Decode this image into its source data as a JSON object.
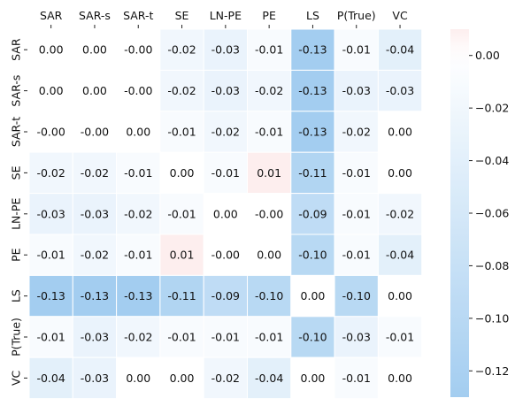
{
  "chart_data": {
    "type": "heatmap",
    "title": "",
    "xlabel": "",
    "ylabel": "",
    "x_categories": [
      "SAR",
      "SAR-s",
      "SAR-t",
      "SE",
      "LN-PE",
      "PE",
      "LS",
      "P(True)",
      "VC"
    ],
    "y_categories": [
      "SAR",
      "SAR-s",
      "SAR-t",
      "SE",
      "LN-PE",
      "PE",
      "LS",
      "P(True)",
      "VC"
    ],
    "values": [
      [
        0.0,
        0.0,
        -0.0,
        -0.02,
        -0.03,
        -0.01,
        -0.13,
        -0.01,
        -0.04
      ],
      [
        0.0,
        0.0,
        -0.0,
        -0.02,
        -0.03,
        -0.02,
        -0.13,
        -0.03,
        -0.03
      ],
      [
        -0.0,
        -0.0,
        0.0,
        -0.01,
        -0.02,
        -0.01,
        -0.13,
        -0.02,
        0.0
      ],
      [
        -0.02,
        -0.02,
        -0.01,
        0.0,
        -0.01,
        0.01,
        -0.11,
        -0.01,
        0.0
      ],
      [
        -0.03,
        -0.03,
        -0.02,
        -0.01,
        0.0,
        -0.0,
        -0.09,
        -0.01,
        -0.02
      ],
      [
        -0.01,
        -0.02,
        -0.01,
        0.01,
        -0.0,
        0.0,
        -0.1,
        -0.01,
        -0.04
      ],
      [
        -0.13,
        -0.13,
        -0.13,
        -0.11,
        -0.09,
        -0.1,
        0.0,
        -0.1,
        0.0
      ],
      [
        -0.01,
        -0.03,
        -0.02,
        -0.01,
        -0.01,
        -0.01,
        -0.1,
        -0.03,
        -0.01
      ],
      [
        -0.04,
        -0.03,
        0.0,
        0.0,
        -0.02,
        -0.04,
        0.0,
        -0.01,
        0.0
      ]
    ],
    "cell_labels": [
      [
        "0.00",
        "0.00",
        "-0.00",
        "-0.02",
        "-0.03",
        "-0.01",
        "-0.13",
        "-0.01",
        "-0.04"
      ],
      [
        "0.00",
        "0.00",
        "-0.00",
        "-0.02",
        "-0.03",
        "-0.02",
        "-0.13",
        "-0.03",
        "-0.03"
      ],
      [
        "-0.00",
        "-0.00",
        "0.00",
        "-0.01",
        "-0.02",
        "-0.01",
        "-0.13",
        "-0.02",
        "0.00"
      ],
      [
        "-0.02",
        "-0.02",
        "-0.01",
        "0.00",
        "-0.01",
        "0.01",
        "-0.11",
        "-0.01",
        "0.00"
      ],
      [
        "-0.03",
        "-0.03",
        "-0.02",
        "-0.01",
        "0.00",
        "-0.00",
        "-0.09",
        "-0.01",
        "-0.02"
      ],
      [
        "-0.01",
        "-0.02",
        "-0.01",
        "0.01",
        "-0.00",
        "0.00",
        "-0.10",
        "-0.01",
        "-0.04"
      ],
      [
        "-0.13",
        "-0.13",
        "-0.13",
        "-0.11",
        "-0.09",
        "-0.10",
        "0.00",
        "-0.10",
        "0.00"
      ],
      [
        "-0.01",
        "-0.03",
        "-0.02",
        "-0.01",
        "-0.01",
        "-0.01",
        "-0.10",
        "-0.03",
        "-0.01"
      ],
      [
        "-0.04",
        "-0.03",
        "0.00",
        "0.00",
        "-0.02",
        "-0.04",
        "0.00",
        "-0.01",
        "0.00"
      ]
    ],
    "x_axis_position": "top",
    "colorbar": {
      "range": [
        -0.13,
        0.01
      ],
      "ticks": [
        0.0,
        -0.02,
        -0.04,
        -0.06,
        -0.08,
        -0.1,
        -0.12
      ],
      "tick_labels": [
        "0.00",
        "−0.02",
        "−0.04",
        "−0.06",
        "−0.08",
        "−0.10",
        "−0.12"
      ],
      "placement": "right"
    },
    "colors": {
      "min": "#a3cdf0",
      "zero": "#ffffff",
      "max": "#fdeeee",
      "cell_border": "#ffffff",
      "text": "#111111"
    },
    "grid": false
  }
}
